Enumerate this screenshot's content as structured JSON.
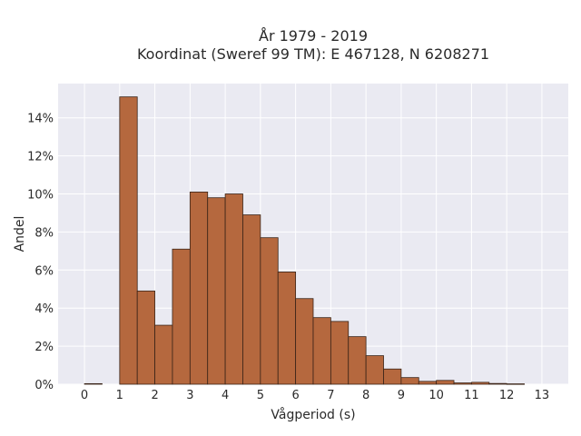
{
  "chart_data": {
    "type": "bar",
    "title": "År 1979 - 2019",
    "subtitle": "Koordinat (Sweref 99 TM): E 467128, N 6208271",
    "xlabel": "Vågperiod (s)",
    "ylabel": "Andel",
    "xlim": [
      -0.75,
      13.75
    ],
    "ylim": [
      0,
      0.158
    ],
    "x_ticks": [
      0,
      1,
      2,
      3,
      4,
      5,
      6,
      7,
      8,
      9,
      10,
      11,
      12,
      13
    ],
    "y_ticks": [
      0,
      0.02,
      0.04,
      0.06,
      0.08,
      0.1,
      0.12,
      0.14
    ],
    "y_tick_labels": [
      "0%",
      "2%",
      "4%",
      "6%",
      "8%",
      "10%",
      "12%",
      "14%"
    ],
    "bin_width": 0.5,
    "bins": [
      {
        "start": 0.0,
        "value": 0.0003
      },
      {
        "start": 1.0,
        "value": 0.151
      },
      {
        "start": 1.5,
        "value": 0.049
      },
      {
        "start": 2.0,
        "value": 0.031
      },
      {
        "start": 2.5,
        "value": 0.071
      },
      {
        "start": 3.0,
        "value": 0.101
      },
      {
        "start": 3.5,
        "value": 0.098
      },
      {
        "start": 4.0,
        "value": 0.1
      },
      {
        "start": 4.5,
        "value": 0.089
      },
      {
        "start": 5.0,
        "value": 0.077
      },
      {
        "start": 5.5,
        "value": 0.059
      },
      {
        "start": 6.0,
        "value": 0.045
      },
      {
        "start": 6.5,
        "value": 0.035
      },
      {
        "start": 7.0,
        "value": 0.033
      },
      {
        "start": 7.5,
        "value": 0.025
      },
      {
        "start": 8.0,
        "value": 0.015
      },
      {
        "start": 8.5,
        "value": 0.008
      },
      {
        "start": 9.0,
        "value": 0.0035
      },
      {
        "start": 9.5,
        "value": 0.0015
      },
      {
        "start": 10.0,
        "value": 0.002
      },
      {
        "start": 10.5,
        "value": 0.0007
      },
      {
        "start": 11.0,
        "value": 0.001
      },
      {
        "start": 11.5,
        "value": 0.0004
      },
      {
        "start": 12.0,
        "value": 0.0002
      }
    ],
    "grid": true,
    "colors": {
      "bar_fill": "#b5683e",
      "bar_edge": "#3a2418",
      "plot_bg": "#eaeaf2",
      "grid": "#ffffff"
    }
  }
}
